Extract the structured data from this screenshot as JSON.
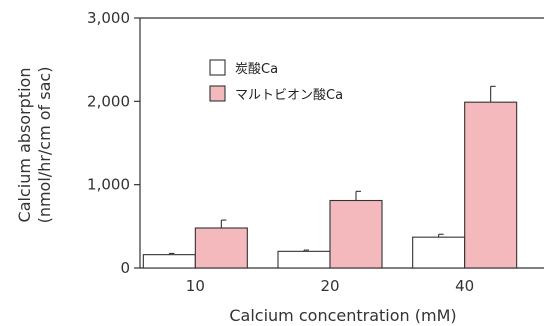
{
  "chart_data": {
    "type": "bar",
    "title": "",
    "xlabel": "Calcium concentration (mM)",
    "ylabel_lines": [
      "Calcium absorption",
      "(nmol/hr/cm of sac)"
    ],
    "categories": [
      "10",
      "20",
      "40"
    ],
    "ylim": [
      0,
      3000
    ],
    "yticks": [
      0,
      1000,
      2000,
      3000
    ],
    "ytick_labels": [
      "0",
      "1,000",
      "2,000",
      "3,000"
    ],
    "series": [
      {
        "name": "炭酸Ca",
        "color": "#ffffff",
        "values": [
          160,
          200,
          370
        ],
        "errors": [
          15,
          15,
          35
        ]
      },
      {
        "name": "マルトビオン酸Ca",
        "color": "#f4b9bc",
        "values": [
          480,
          810,
          1990
        ],
        "errors": [
          95,
          110,
          190
        ]
      }
    ],
    "legend_position": "top-left",
    "grid": false
  }
}
